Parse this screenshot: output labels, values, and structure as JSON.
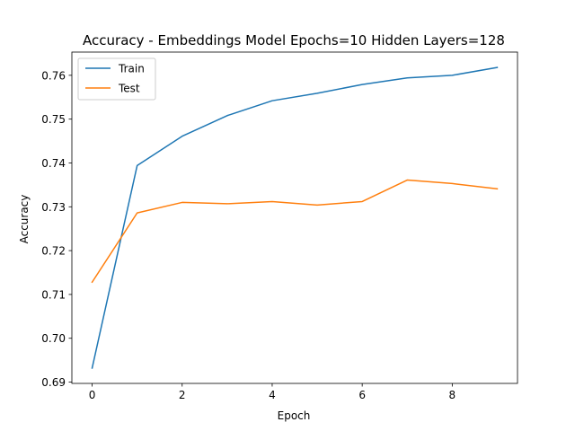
{
  "chart_data": {
    "type": "line",
    "title": "Accuracy - Embeddings Model Epochs=10 Hidden Layers=128",
    "xlabel": "Epoch",
    "ylabel": "Accuracy",
    "x": [
      0,
      1,
      2,
      3,
      4,
      5,
      6,
      7,
      8,
      9
    ],
    "xlim": [
      -0.45,
      9.45
    ],
    "ylim": [
      0.6897,
      0.7653
    ],
    "xticks": [
      0,
      2,
      4,
      6,
      8
    ],
    "xtick_labels": [
      "0",
      "2",
      "4",
      "6",
      "8"
    ],
    "yticks": [
      0.69,
      0.7,
      0.71,
      0.72,
      0.73,
      0.74,
      0.75,
      0.76
    ],
    "ytick_labels": [
      "0.69",
      "0.70",
      "0.71",
      "0.72",
      "0.73",
      "0.74",
      "0.75",
      "0.76"
    ],
    "grid": false,
    "legend_position": "upper-left",
    "series": [
      {
        "name": "Train",
        "color": "#1f77b4",
        "values": [
          0.6932,
          0.7394,
          0.7461,
          0.7508,
          0.7542,
          0.7559,
          0.7579,
          0.7594,
          0.76,
          0.7618
        ]
      },
      {
        "name": "Test",
        "color": "#ff7f0e",
        "values": [
          0.7128,
          0.7286,
          0.731,
          0.7307,
          0.7312,
          0.7304,
          0.7312,
          0.7361,
          0.7353,
          0.7341
        ]
      }
    ]
  }
}
